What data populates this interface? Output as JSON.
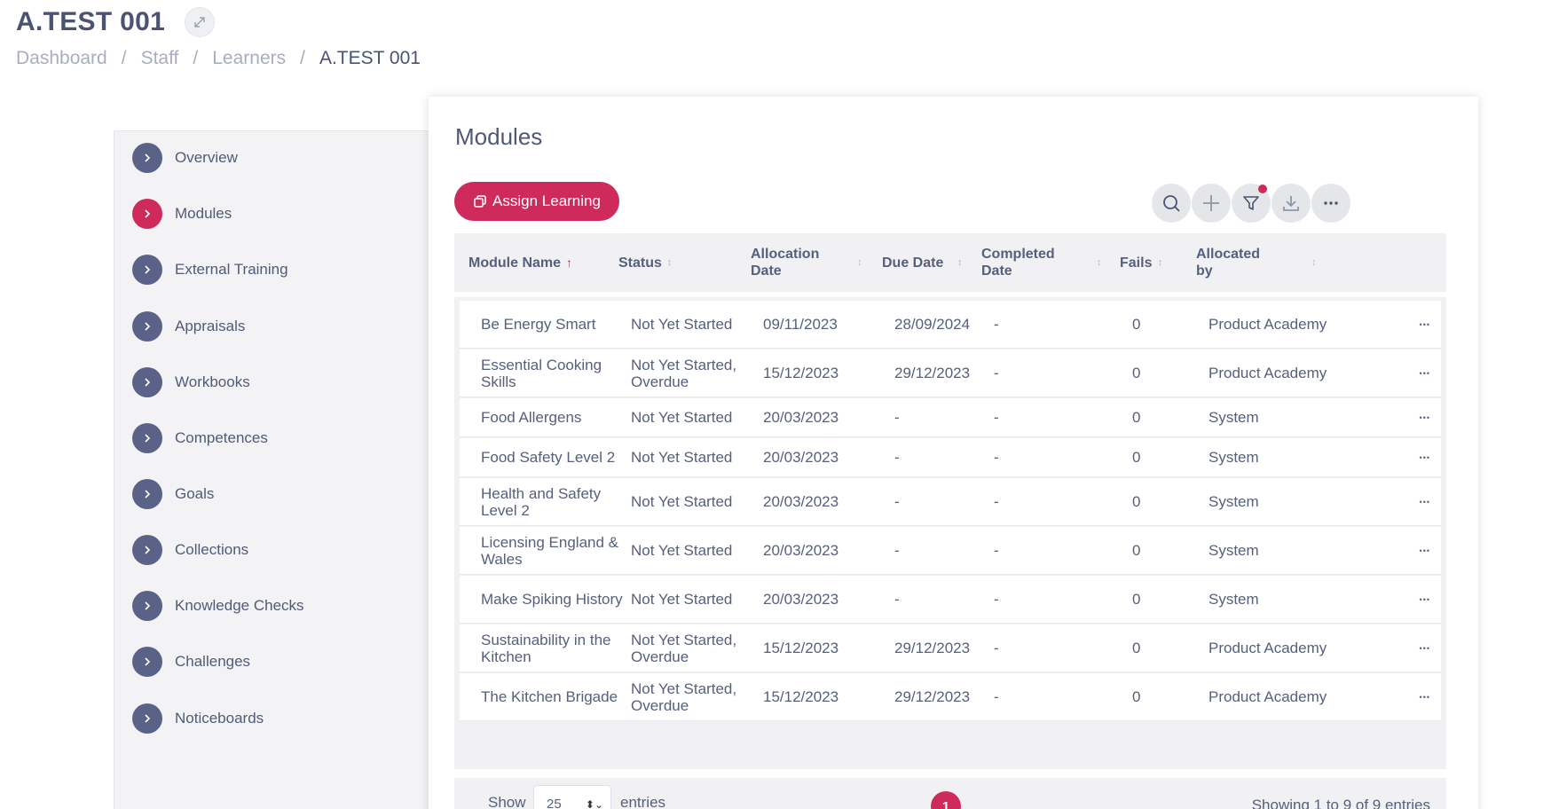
{
  "page": {
    "title": "A.TEST 001",
    "expand_icon": "expand-arrows-icon"
  },
  "breadcrumb": [
    {
      "label": "Dashboard"
    },
    {
      "label": "Staff"
    },
    {
      "label": "Learners"
    },
    {
      "label": "A.TEST 001"
    }
  ],
  "sidebar": {
    "items": [
      {
        "label": "Overview",
        "active": false
      },
      {
        "label": "Modules",
        "active": true
      },
      {
        "label": "External Training",
        "active": false
      },
      {
        "label": "Appraisals",
        "active": false
      },
      {
        "label": "Workbooks",
        "active": false
      },
      {
        "label": "Competences",
        "active": false
      },
      {
        "label": "Goals",
        "active": false
      },
      {
        "label": "Collections",
        "active": false
      },
      {
        "label": "Knowledge Checks",
        "active": false
      },
      {
        "label": "Challenges",
        "active": false
      },
      {
        "label": "Noticeboards",
        "active": false
      }
    ]
  },
  "modules": {
    "title": "Modules",
    "assign_label": "Assign Learning",
    "toolbar": [
      "search-icon",
      "plus-icon",
      "filter-icon",
      "download-icon",
      "more-icon"
    ],
    "columns": [
      {
        "label": "Module Name",
        "sort": "asc"
      },
      {
        "label": "Status",
        "sort": "none"
      },
      {
        "label": "Allocation Date",
        "sort": "none"
      },
      {
        "label": "Due Date",
        "sort": "none"
      },
      {
        "label": "Completed Date",
        "sort": "none"
      },
      {
        "label": "Fails",
        "sort": "none"
      },
      {
        "label": "Allocated by",
        "sort": "none"
      }
    ],
    "rows": [
      {
        "name": "Be Energy Smart",
        "status": "Not Yet Started",
        "allocation": "09/11/2023",
        "due": "28/09/2024",
        "completed": "-",
        "fails": "0",
        "by": "Product Academy"
      },
      {
        "name": "Essential Cooking Skills",
        "status": "Not Yet Started, Overdue",
        "allocation": "15/12/2023",
        "due": "29/12/2023",
        "completed": "-",
        "fails": "0",
        "by": "Product Academy"
      },
      {
        "name": "Food Allergens",
        "status": "Not Yet Started",
        "allocation": "20/03/2023",
        "due": "-",
        "completed": "-",
        "fails": "0",
        "by": "System"
      },
      {
        "name": "Food Safety Level 2",
        "status": "Not Yet Started",
        "allocation": "20/03/2023",
        "due": "-",
        "completed": "-",
        "fails": "0",
        "by": "System"
      },
      {
        "name": "Health and Safety Level 2",
        "status": "Not Yet Started",
        "allocation": "20/03/2023",
        "due": "-",
        "completed": "-",
        "fails": "0",
        "by": "System"
      },
      {
        "name": "Licensing England & Wales",
        "status": "Not Yet Started",
        "allocation": "20/03/2023",
        "due": "-",
        "completed": "-",
        "fails": "0",
        "by": "System"
      },
      {
        "name": "Make Spiking History",
        "status": "Not Yet Started",
        "allocation": "20/03/2023",
        "due": "-",
        "completed": "-",
        "fails": "0",
        "by": "System"
      },
      {
        "name": "Sustainability in the Kitchen",
        "status": "Not Yet Started, Overdue",
        "allocation": "15/12/2023",
        "due": "29/12/2023",
        "completed": "-",
        "fails": "0",
        "by": "Product Academy"
      },
      {
        "name": "The Kitchen Brigade",
        "status": "Not Yet Started, Overdue",
        "allocation": "15/12/2023",
        "due": "29/12/2023",
        "completed": "-",
        "fails": "0",
        "by": "Product Academy"
      }
    ],
    "footer": {
      "show_label": "Show",
      "page_size": "25",
      "entries_label": "entries",
      "current_page": "1",
      "showing_text": "Showing 1 to 9 of 9 entries"
    }
  },
  "colors": {
    "accent": "#cf2a5c",
    "nav_dot": "#5a6387",
    "text": "#56607c"
  }
}
